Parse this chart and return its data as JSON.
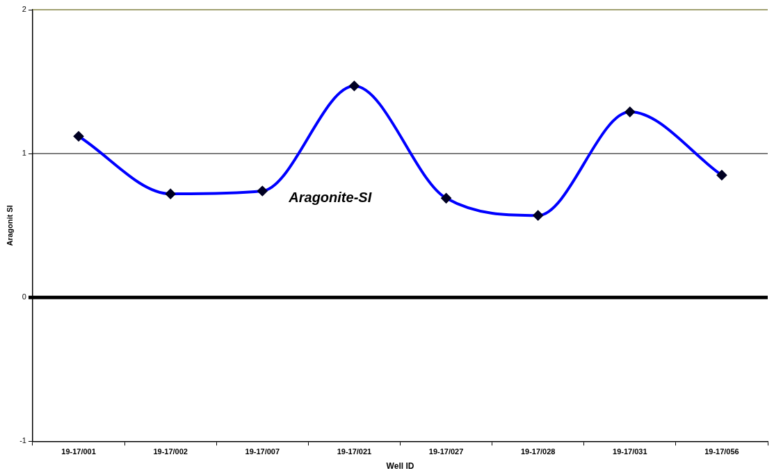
{
  "chart_data": {
    "type": "line",
    "xlabel": "Well ID",
    "ylabel": "Aragonit SI",
    "categories": [
      "19-17/001",
      "19-17/002",
      "19-17/007",
      "19-17/021",
      "19-17/027",
      "19-17/028",
      "19-17/031",
      "19-17/056"
    ],
    "series": [
      {
        "name": "Aragonite-SI",
        "color": "#0000ff",
        "values": [
          1.12,
          0.72,
          0.74,
          1.47,
          0.69,
          0.57,
          1.29,
          0.85
        ]
      }
    ],
    "ylim": [
      -1,
      2
    ],
    "yticks": [
      -1,
      0,
      1,
      2
    ],
    "ref_lines": [
      {
        "axis": "y",
        "value": 1,
        "color": "#000000"
      }
    ],
    "legend": false,
    "marker": "diamond",
    "line_style": "solid"
  }
}
